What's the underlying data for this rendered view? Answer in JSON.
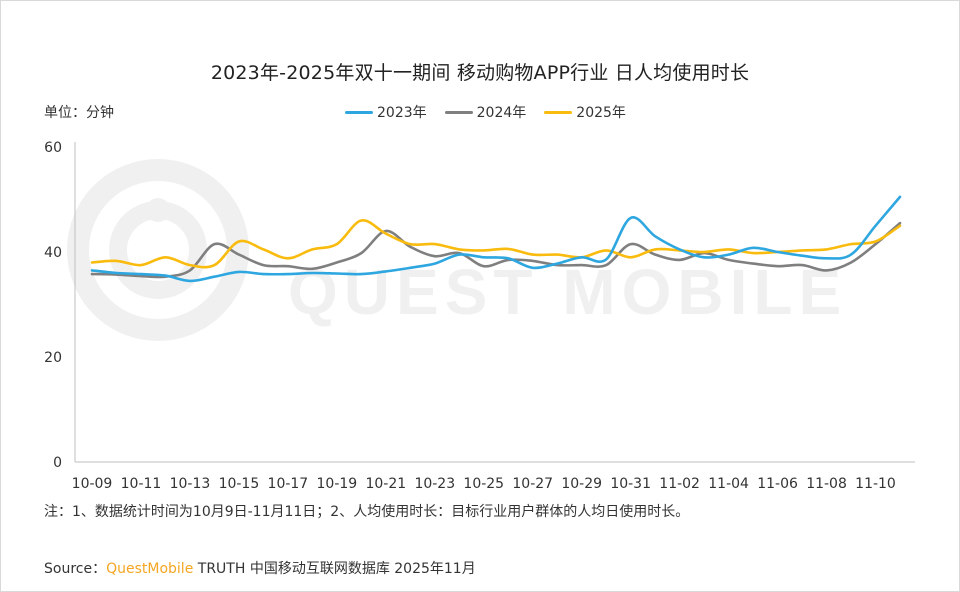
{
  "title": "2023年-2025年双十一期间 移动购物APP行业 日人均使用时长",
  "unit_label": "单位：分钟",
  "note": "注：1、数据统计时间为10月9日-11月11日；2、人均使用时长：目标行业用户群体的人均日使用时长。",
  "source": {
    "prefix": "Source：",
    "brand": "QuestMobile",
    "suffix": " TRUTH 中国移动互联网数据库 2025年11月"
  },
  "watermark_text": "QUEST MOBILE",
  "chart_data": {
    "type": "line",
    "title": "2023年-2025年双十一期间 移动购物APP行业 日人均使用时长",
    "ylabel": "单位：分钟",
    "xlabel": "",
    "ylim": [
      0,
      60
    ],
    "yticks": [
      0,
      20,
      40,
      60
    ],
    "x": [
      "10-09",
      "10-10",
      "10-11",
      "10-12",
      "10-13",
      "10-14",
      "10-15",
      "10-16",
      "10-17",
      "10-18",
      "10-19",
      "10-20",
      "10-21",
      "10-22",
      "10-23",
      "10-24",
      "10-25",
      "10-26",
      "10-27",
      "10-28",
      "10-29",
      "10-30",
      "10-31",
      "11-01",
      "11-02",
      "11-03",
      "11-04",
      "11-05",
      "11-06",
      "11-07",
      "11-08",
      "11-09",
      "11-10",
      "11-11"
    ],
    "xtick_labels": [
      "10-09",
      "10-11",
      "10-13",
      "10-15",
      "10-17",
      "10-19",
      "10-21",
      "10-23",
      "10-25",
      "10-27",
      "10-29",
      "10-31",
      "11-02",
      "11-04",
      "11-06",
      "11-08",
      "11-10"
    ],
    "grid": false,
    "legend_position": "top",
    "series": [
      {
        "name": "2023年",
        "color": "#2ea7e0",
        "values": [
          36.5,
          36.0,
          35.8,
          35.5,
          34.5,
          35.3,
          36.2,
          35.8,
          35.8,
          36.0,
          35.9,
          35.8,
          36.3,
          37.0,
          37.8,
          39.5,
          39.0,
          38.8,
          37.0,
          37.8,
          39.0,
          38.6,
          46.5,
          43.0,
          40.5,
          39.0,
          39.5,
          40.8,
          40.0,
          39.3,
          38.8,
          39.5,
          45.0,
          50.5
        ]
      },
      {
        "name": "2024年",
        "color": "#7f7f7f",
        "values": [
          35.8,
          35.7,
          35.4,
          35.3,
          36.5,
          41.5,
          39.5,
          37.5,
          37.3,
          36.8,
          38.0,
          39.8,
          44.0,
          41.0,
          39.2,
          39.8,
          37.3,
          38.5,
          38.3,
          37.5,
          37.5,
          37.5,
          41.5,
          39.5,
          38.5,
          39.8,
          38.5,
          37.8,
          37.3,
          37.5,
          36.5,
          38.0,
          41.5,
          45.5
        ]
      },
      {
        "name": "2025年",
        "color": "#f9bb0e",
        "values": [
          38.0,
          38.3,
          37.5,
          39.0,
          37.5,
          37.5,
          42.0,
          40.5,
          38.8,
          40.5,
          41.5,
          46.0,
          43.5,
          41.5,
          41.5,
          40.5,
          40.3,
          40.6,
          39.5,
          39.5,
          39.0,
          40.3,
          39.0,
          40.5,
          40.3,
          40.0,
          40.5,
          39.8,
          40.0,
          40.3,
          40.5,
          41.5,
          42.0,
          45.0
        ]
      }
    ]
  }
}
